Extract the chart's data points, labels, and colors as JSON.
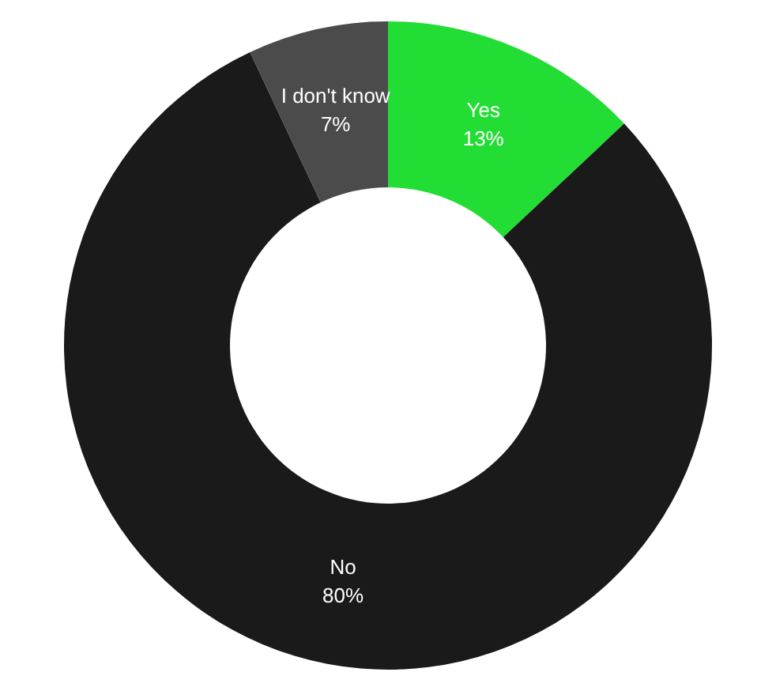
{
  "chart_data": {
    "type": "donut",
    "categories": [
      "Yes",
      "No",
      "I don't know"
    ],
    "values": [
      13,
      80,
      7
    ],
    "colors": [
      "#22dd33",
      "#1a1a1a",
      "#4b4b4b"
    ],
    "value_labels": [
      "13%",
      "80%",
      "7%"
    ]
  }
}
